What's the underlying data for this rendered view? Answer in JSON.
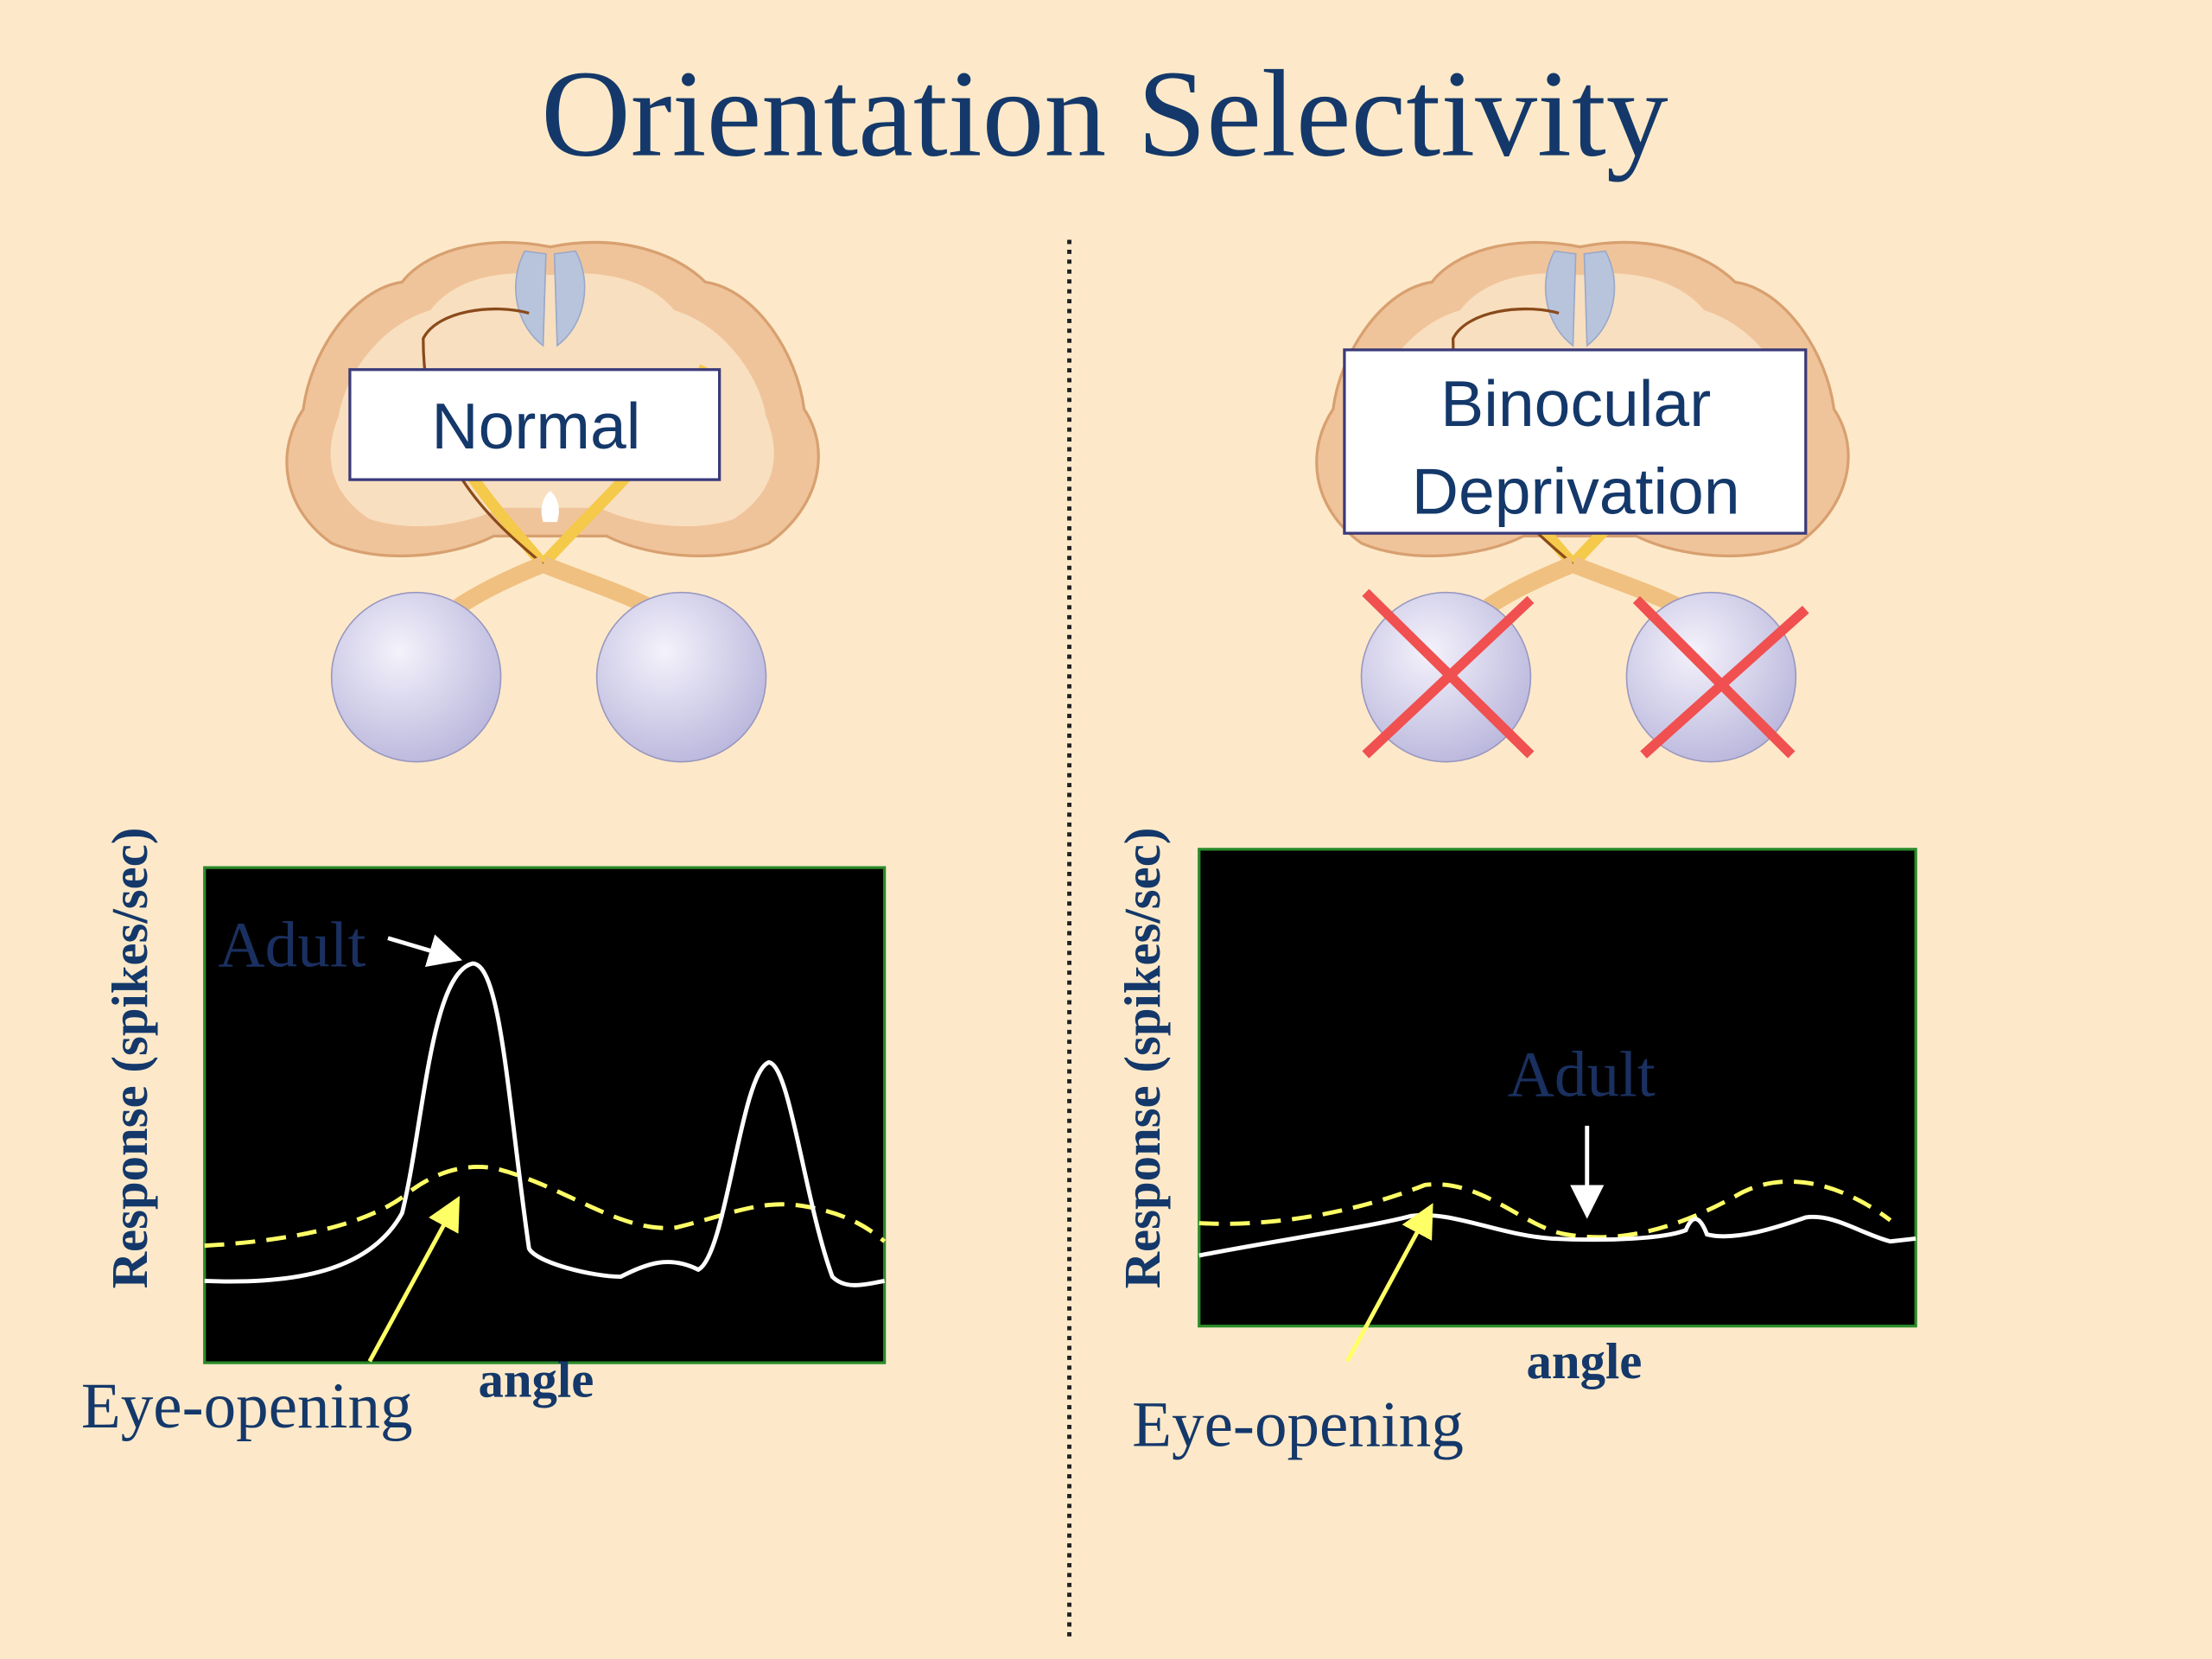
{
  "title": "Orientation Selectivity",
  "panels": [
    {
      "label": [
        "Normal"
      ],
      "y_label": "Response (spikes/sec)",
      "x_label": "angle",
      "adult_label": "Adult",
      "eye_opening_label": "Eye-opening"
    },
    {
      "label": [
        "Binocular",
        "Deprivation"
      ],
      "y_label": "Response (spikes/sec)",
      "x_label": "angle",
      "adult_label": "Adult",
      "eye_opening_label": "Eye-opening"
    }
  ]
}
